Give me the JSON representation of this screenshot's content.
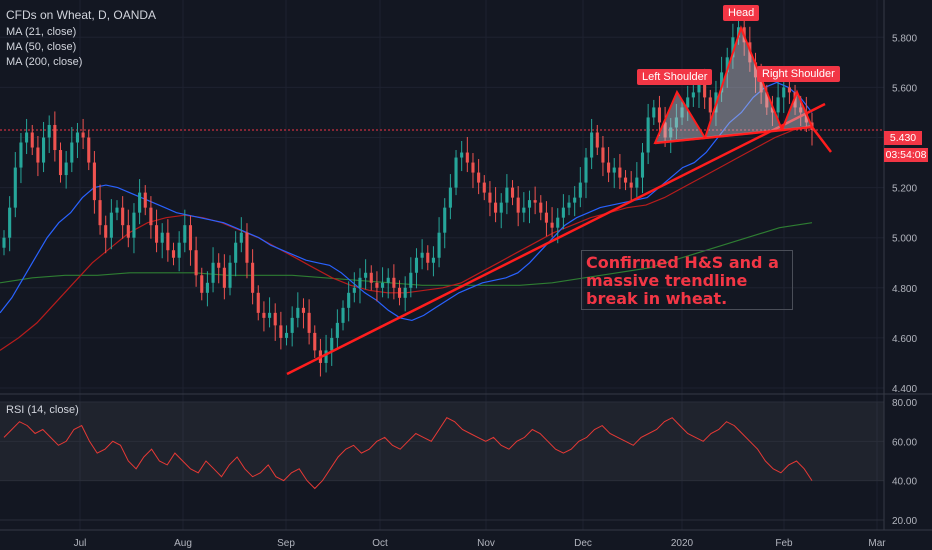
{
  "header": {
    "title": "CFDs on Wheat, D, OANDA",
    "ma_21": "MA (21, close)",
    "ma_50": "MA (50, close)",
    "ma_200": "MA (200, close)",
    "rsi_label": "RSI (14, close)"
  },
  "colors": {
    "background": "#131722",
    "bull": "#26a69a",
    "bear": "#ef5350",
    "ma21": "#2962ff",
    "ma50": "#b71c1c",
    "ma200": "#2e7d32",
    "trendline": "#ff1d1d",
    "rsi": "#e53935"
  },
  "annotation": {
    "text": "Confirmed H&S and a massive trendline break in wheat.",
    "left_shoulder": "Left Shoulder",
    "head": "Head",
    "right_shoulder": "Right Shoulder"
  },
  "price_tag": "5.430",
  "countdown": "03:54:08",
  "chart_data": [
    {
      "type": "candlestick",
      "title": "CFDs on Wheat, D, OANDA",
      "x_ticks": [
        "Jul",
        "Aug",
        "Sep",
        "Oct",
        "Nov",
        "Dec",
        "2020",
        "Feb",
        "Mar"
      ],
      "y_ticks": [
        "5.800",
        "5.600",
        "5.400",
        "5.200",
        "5.000",
        "4.800",
        "4.600",
        "4.400"
      ],
      "ylim": [
        4.38,
        5.98
      ],
      "current_price": 5.43,
      "close": [
        5.0,
        5.12,
        5.28,
        5.38,
        5.42,
        5.36,
        5.3,
        5.4,
        5.45,
        5.35,
        5.25,
        5.3,
        5.38,
        5.42,
        5.4,
        5.3,
        5.15,
        5.05,
        5.0,
        5.1,
        5.12,
        5.05,
        5.0,
        5.1,
        5.18,
        5.12,
        5.05,
        4.98,
        5.02,
        4.95,
        4.92,
        4.98,
        5.05,
        4.95,
        4.85,
        4.78,
        4.82,
        4.9,
        4.88,
        4.8,
        4.9,
        4.98,
        5.02,
        4.9,
        4.78,
        4.7,
        4.68,
        4.7,
        4.65,
        4.6,
        4.62,
        4.68,
        4.72,
        4.7,
        4.62,
        4.55,
        4.5,
        4.55,
        4.6,
        4.66,
        4.72,
        4.78,
        4.8,
        4.84,
        4.86,
        4.82,
        4.8,
        4.82,
        4.84,
        4.8,
        4.76,
        4.8,
        4.86,
        4.92,
        4.94,
        4.9,
        4.92,
        5.02,
        5.12,
        5.2,
        5.32,
        5.34,
        5.3,
        5.26,
        5.22,
        5.18,
        5.14,
        5.1,
        5.14,
        5.2,
        5.16,
        5.1,
        5.12,
        5.15,
        5.14,
        5.1,
        5.06,
        5.04,
        5.08,
        5.12,
        5.14,
        5.16,
        5.22,
        5.32,
        5.42,
        5.36,
        5.3,
        5.26,
        5.28,
        5.24,
        5.22,
        5.2,
        5.24,
        5.34,
        5.48,
        5.52,
        5.46,
        5.4,
        5.44,
        5.48,
        5.52,
        5.56,
        5.58,
        5.62,
        5.56,
        5.5,
        5.58,
        5.66,
        5.72,
        5.8,
        5.84,
        5.78,
        5.7,
        5.64,
        5.58,
        5.52,
        5.5,
        5.56,
        5.6,
        5.58,
        5.52,
        5.5,
        5.46,
        5.43
      ],
      "series": [
        {
          "name": "MA (21, close)",
          "values": [
            4.7,
            4.76,
            4.84,
            4.92,
            5.0,
            5.06,
            5.1,
            5.16,
            5.2,
            5.21,
            5.2,
            5.18,
            5.16,
            5.14,
            5.12,
            5.1,
            5.09,
            5.08,
            5.07,
            5.06,
            5.04,
            5.02,
            5.0,
            4.97,
            4.95,
            4.93,
            4.91,
            4.9,
            4.89,
            4.86,
            4.82,
            4.78,
            4.75,
            4.71,
            4.68,
            4.67,
            4.69,
            4.72,
            4.75,
            4.78,
            4.8,
            4.82,
            4.83,
            4.84,
            4.86,
            4.9,
            4.95,
            5.0,
            5.05,
            5.08,
            5.1,
            5.12,
            5.13,
            5.14,
            5.15,
            5.16,
            5.2,
            5.24,
            5.28,
            5.3,
            5.34,
            5.4,
            5.46,
            5.5,
            5.56,
            5.6,
            5.62,
            5.6,
            5.56,
            5.5
          ]
        },
        {
          "name": "MA (50, close)",
          "values": [
            4.55,
            4.6,
            4.66,
            4.74,
            4.82,
            4.9,
            4.96,
            5.02,
            5.06,
            5.08,
            5.09,
            5.08,
            5.06,
            5.03,
            5.0,
            4.96,
            4.92,
            4.88,
            4.84,
            4.81,
            4.79,
            4.78,
            4.78,
            4.79,
            4.8,
            4.82,
            4.86,
            4.9,
            4.94,
            4.98,
            5.02,
            5.05,
            5.08,
            5.1,
            5.12,
            5.13,
            5.16,
            5.2,
            5.24,
            5.28,
            5.32,
            5.36,
            5.4,
            5.43,
            5.45
          ]
        },
        {
          "name": "MA (200, close)",
          "values": [
            4.82,
            4.84,
            4.85,
            4.85,
            4.86,
            4.86,
            4.86,
            4.85,
            4.85,
            4.85,
            4.84,
            4.83,
            4.82,
            4.81,
            4.81,
            4.81,
            4.81,
            4.82,
            4.84,
            4.86,
            4.88,
            4.92,
            4.96,
            5.0,
            5.04,
            5.06
          ]
        }
      ]
    },
    {
      "type": "line",
      "title": "RSI (14, close)",
      "y_ticks": [
        "80.00",
        "60.00",
        "40.00",
        "20.00"
      ],
      "ylim": [
        18,
        82
      ],
      "series": [
        {
          "name": "RSI (14, close)",
          "values": [
            62,
            66,
            70,
            68,
            64,
            66,
            62,
            58,
            60,
            66,
            68,
            60,
            54,
            56,
            60,
            58,
            50,
            46,
            52,
            56,
            50,
            48,
            54,
            50,
            46,
            44,
            50,
            46,
            42,
            48,
            52,
            46,
            42,
            44,
            48,
            42,
            40,
            44,
            46,
            40,
            36,
            40,
            46,
            52,
            56,
            58,
            54,
            56,
            60,
            62,
            58,
            56,
            60,
            64,
            62,
            60,
            66,
            72,
            70,
            66,
            64,
            62,
            60,
            62,
            58,
            56,
            60,
            62,
            66,
            64,
            60,
            56,
            54,
            56,
            60,
            62,
            66,
            68,
            64,
            62,
            60,
            58,
            62,
            64,
            66,
            70,
            72,
            68,
            64,
            62,
            60,
            64,
            66,
            70,
            68,
            64,
            60,
            56,
            50,
            46,
            44,
            48,
            50,
            46,
            40
          ]
        }
      ]
    }
  ]
}
